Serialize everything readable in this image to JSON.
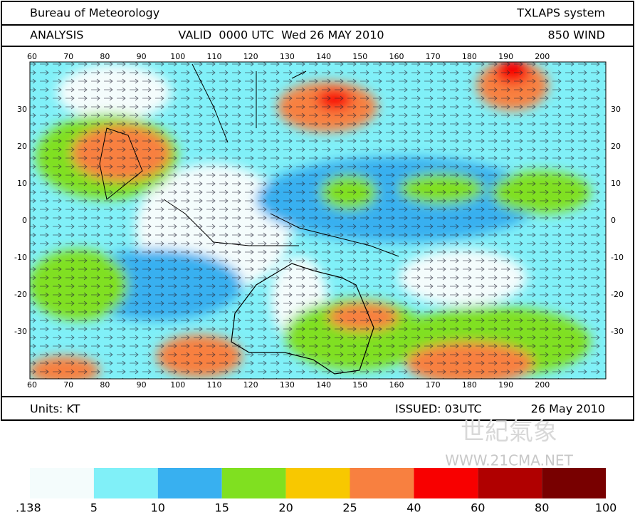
{
  "header": {
    "agency": "Bureau of Meteorology",
    "system": "TXLAPS system",
    "product": "ANALYSIS",
    "valid": "VALID  0000 UTC  Wed 26 MAY 2010",
    "field": "850 WIND"
  },
  "map": {
    "lon_labels": [
      60,
      70,
      80,
      90,
      100,
      110,
      120,
      130,
      140,
      150,
      160,
      170,
      180,
      190,
      200
    ],
    "lat_labels": [
      30,
      20,
      10,
      0,
      -10,
      -20,
      -30
    ]
  },
  "footer": {
    "units": "Units: KT",
    "issued": "ISSUED: 03UTC",
    "date": "26 May 2010"
  },
  "watermark": {
    "title": "世紀氣象",
    "url": "WWW.21CMA.NET"
  },
  "legend": {
    "labels": [
      ".138",
      "5",
      "10",
      "15",
      "20",
      "25",
      "40",
      "60",
      "80",
      "100"
    ],
    "colors": [
      "#f4fcfc",
      "#80f0f8",
      "#38b0f0",
      "#80e020",
      "#f8c800",
      "#f88040",
      "#f80000",
      "#b00000",
      "#780000"
    ]
  }
}
